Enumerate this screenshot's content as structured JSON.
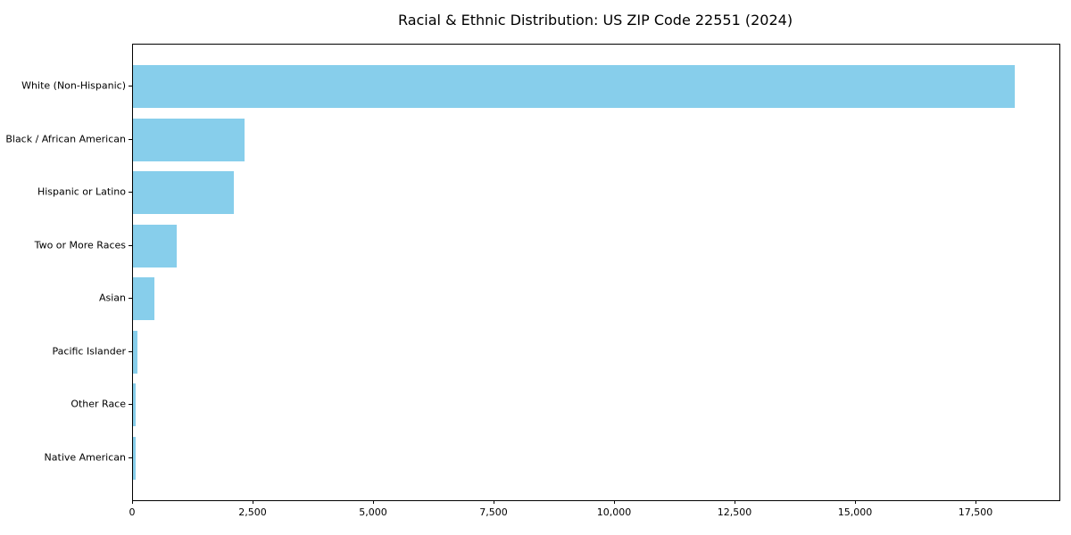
{
  "chart_data": {
    "type": "bar",
    "orientation": "horizontal",
    "title": "Racial & Ethnic Distribution: US ZIP Code 22551 (2024)",
    "categories": [
      "White (Non-Hispanic)",
      "Black / African American",
      "Hispanic or Latino",
      "Two or More Races",
      "Asian",
      "Pacific Islander",
      "Other Race",
      "Native American"
    ],
    "values": [
      18300,
      2310,
      2090,
      910,
      440,
      85,
      55,
      50
    ],
    "xlabel": "",
    "ylabel": "",
    "xlim": [
      0,
      19222
    ],
    "x_ticks": [
      0,
      2500,
      5000,
      7500,
      10000,
      12500,
      15000,
      17500
    ],
    "x_tick_labels": [
      "0",
      "2,500",
      "5,000",
      "7,500",
      "10,000",
      "12,500",
      "15,000",
      "17,500"
    ],
    "bar_color": "#87CEEB",
    "grid": false,
    "legend": "none",
    "background_color": "#ffffff"
  }
}
